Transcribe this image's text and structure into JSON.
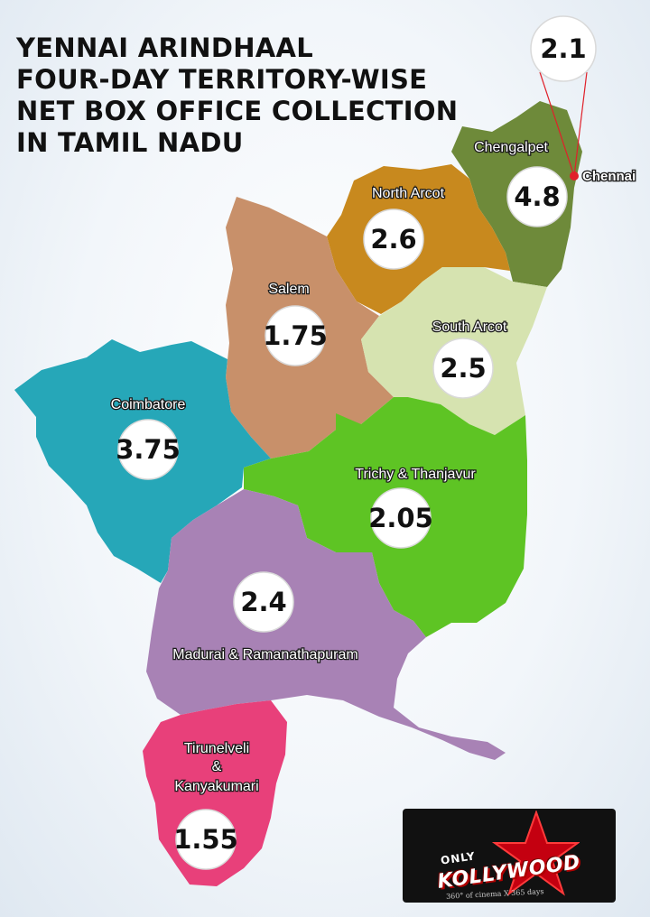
{
  "title_lines": [
    "YENNAI ARINDHAAL",
    "FOUR-DAY TERRITORY-WISE",
    "NET BOX OFFICE COLLECTION",
    "IN TAMIL NADU"
  ],
  "colors": {
    "chengalpet": "#6e8a3a",
    "north_arcot": "#c8891e",
    "salem": "#c8906a",
    "south_arcot": "#d6e3b0",
    "coimbatore": "#26a7b8",
    "trichy": "#5ec424",
    "madurai": "#a882b5",
    "tirunelveli": "#e8407a",
    "chennai_dot": "#e0202a"
  },
  "territories": {
    "chengalpet": {
      "name": "Chengalpet",
      "value": "4.8"
    },
    "chennai": {
      "name": "Chennai",
      "value": "2.1"
    },
    "north_arcot": {
      "name": "North Arcot",
      "value": "2.6"
    },
    "salem": {
      "name": "Salem",
      "value": "1.75"
    },
    "south_arcot": {
      "name": "South Arcot",
      "value": "2.5"
    },
    "coimbatore": {
      "name": "Coimbatore",
      "value": "3.75"
    },
    "trichy": {
      "name": "Trichy & Thanjavur",
      "value": "2.05"
    },
    "madurai": {
      "name": "Madurai & Ramanathapuram",
      "value": "2.4"
    },
    "tirunelveli": {
      "name_lines": [
        "Tirunelveli",
        "&",
        "Kanyakumari"
      ],
      "value": "1.55"
    }
  },
  "logo": {
    "only": "ONLY",
    "brand": "KOLLYWOOD",
    "tagline": "360° of cinema X 365 days"
  }
}
